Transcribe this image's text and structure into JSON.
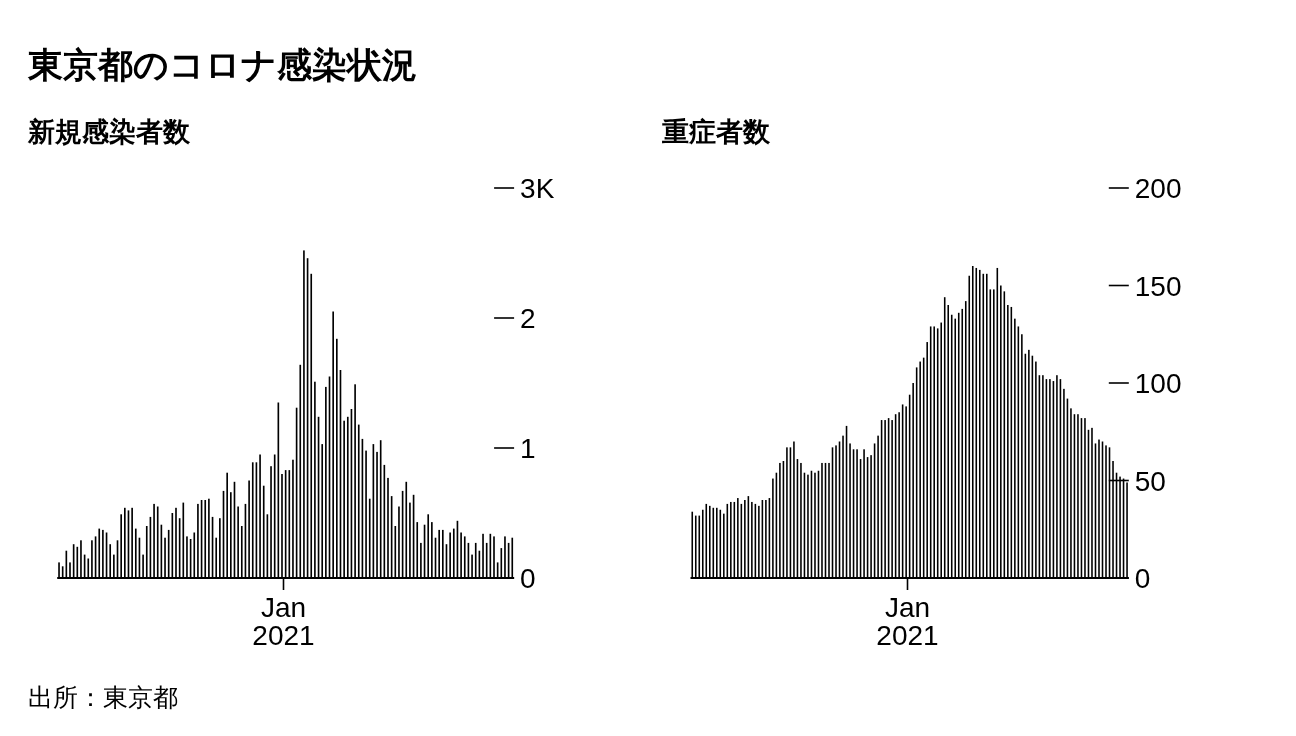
{
  "chart_data": [
    {
      "type": "other",
      "title": "東京都のコロナ感染状況",
      "annotations": [
        "出所：東京都"
      ]
    },
    {
      "type": "bar",
      "title": "新規感染者数",
      "color": "#000000",
      "categories": [
        null,
        null,
        null,
        null,
        null,
        null,
        null,
        null,
        null,
        null,
        null,
        null,
        null,
        null,
        null,
        null,
        null,
        null,
        null,
        null,
        null,
        null,
        null,
        null,
        null,
        null,
        null,
        null,
        null,
        null,
        null,
        null,
        null,
        null,
        null,
        null,
        null,
        null,
        null,
        null,
        null,
        null,
        null,
        null,
        null,
        null,
        null,
        null,
        null,
        null,
        null,
        null,
        null,
        null,
        null,
        null,
        null,
        null,
        null,
        null,
        null,
        null,
        null,
        null,
        null,
        null,
        null,
        null,
        null,
        null,
        null,
        null,
        null,
        null,
        null,
        null,
        null,
        null,
        null,
        null,
        null,
        null,
        null,
        null,
        null,
        null,
        null,
        null,
        null,
        null,
        null,
        null,
        null,
        null,
        null,
        null,
        null,
        null,
        null,
        null,
        null,
        null,
        null,
        null,
        null,
        null,
        null,
        null,
        null,
        null,
        null,
        null,
        null,
        null,
        null,
        null,
        null,
        null,
        null,
        null,
        null,
        null,
        null,
        null,
        null
      ],
      "values": [
        0.12,
        0.09,
        0.21,
        0.12,
        0.26,
        0.24,
        0.29,
        0.18,
        0.15,
        0.29,
        0.32,
        0.38,
        0.37,
        0.35,
        0.26,
        0.18,
        0.29,
        0.49,
        0.54,
        0.52,
        0.54,
        0.38,
        0.31,
        0.18,
        0.4,
        0.47,
        0.57,
        0.55,
        0.41,
        0.31,
        0.37,
        0.5,
        0.54,
        0.46,
        0.58,
        0.32,
        0.3,
        0.35,
        0.57,
        0.6,
        0.6,
        0.61,
        0.47,
        0.31,
        0.46,
        0.67,
        0.81,
        0.66,
        0.74,
        0.55,
        0.4,
        0.57,
        0.75,
        0.89,
        0.89,
        0.95,
        0.71,
        0.49,
        0.86,
        0.95,
        1.35,
        0.8,
        0.83,
        0.83,
        0.91,
        1.31,
        1.64,
        2.52,
        2.46,
        2.34,
        1.51,
        1.24,
        1.03,
        1.47,
        1.55,
        2.05,
        1.84,
        1.6,
        1.21,
        1.24,
        1.3,
        1.49,
        1.18,
        1.07,
        0.98,
        0.61,
        1.03,
        0.97,
        1.06,
        0.87,
        0.77,
        0.63,
        0.4,
        0.55,
        0.67,
        0.74,
        0.58,
        0.64,
        0.43,
        0.27,
        0.41,
        0.49,
        0.43,
        0.31,
        0.37,
        0.37,
        0.26,
        0.35,
        0.38,
        0.44,
        0.35,
        0.32,
        0.27,
        0.18,
        0.27,
        0.21,
        0.34,
        0.27,
        0.34,
        0.32,
        0.12,
        0.23,
        0.32,
        0.27,
        0.31
      ],
      "ylim": [
        0,
        3
      ],
      "yticks": [
        {
          "value": 0,
          "label": "0"
        },
        {
          "value": 1,
          "label": "1"
        },
        {
          "value": 2,
          "label": "2"
        },
        {
          "value": 3,
          "label": "3K"
        }
      ],
      "annotations": [
        "Jan\n2021"
      ]
    },
    {
      "type": "bar",
      "title": "重症者数",
      "color": "#000000",
      "categories": [
        null,
        null,
        null,
        null,
        null,
        null,
        null,
        null,
        null,
        null,
        null,
        null,
        null,
        null,
        null,
        null,
        null,
        null,
        null,
        null,
        null,
        null,
        null,
        null,
        null,
        null,
        null,
        null,
        null,
        null,
        null,
        null,
        null,
        null,
        null,
        null,
        null,
        null,
        null,
        null,
        null,
        null,
        null,
        null,
        null,
        null,
        null,
        null,
        null,
        null,
        null,
        null,
        null,
        null,
        null,
        null,
        null,
        null,
        null,
        null,
        null,
        null,
        null,
        null,
        null,
        null,
        null,
        null,
        null,
        null,
        null,
        null,
        null,
        null,
        null,
        null,
        null,
        null,
        null,
        null,
        null,
        null,
        null,
        null,
        null,
        null,
        null,
        null,
        null,
        null,
        null,
        null,
        null,
        null,
        null,
        null,
        null,
        null,
        null,
        null,
        null,
        null,
        null,
        null,
        null,
        null,
        null,
        null,
        null,
        null,
        null,
        null,
        null,
        null,
        null,
        null,
        null,
        null,
        null,
        null,
        null,
        null,
        null,
        null,
        null
      ],
      "values": [
        34,
        32,
        32,
        35,
        38,
        37,
        36,
        36,
        35,
        33,
        38,
        39,
        39,
        41,
        38,
        40,
        42,
        39,
        38,
        37,
        40,
        40,
        41,
        51,
        54,
        59,
        60,
        67,
        67,
        70,
        61,
        59,
        54,
        53,
        55,
        54,
        55,
        59,
        59,
        59,
        67,
        68,
        70,
        73,
        78,
        69,
        66,
        66,
        61,
        66,
        62,
        63,
        69,
        73,
        81,
        81,
        82,
        81,
        84,
        85,
        89,
        88,
        94,
        100,
        108,
        111,
        113,
        121,
        129,
        129,
        128,
        131,
        144,
        140,
        135,
        133,
        136,
        138,
        142,
        155,
        160,
        159,
        158,
        156,
        156,
        148,
        148,
        159,
        150,
        147,
        140,
        139,
        133,
        129,
        125,
        115,
        117,
        114,
        111,
        104,
        104,
        102,
        102,
        101,
        104,
        102,
        97,
        92,
        87,
        84,
        84,
        82,
        82,
        76,
        77,
        69,
        71,
        70,
        68,
        67,
        60,
        54,
        52,
        51,
        49
      ],
      "ylim": [
        0,
        200
      ],
      "yticks": [
        0,
        50,
        100,
        150,
        200
      ],
      "annotations": [
        "Jan\n2021"
      ]
    }
  ]
}
